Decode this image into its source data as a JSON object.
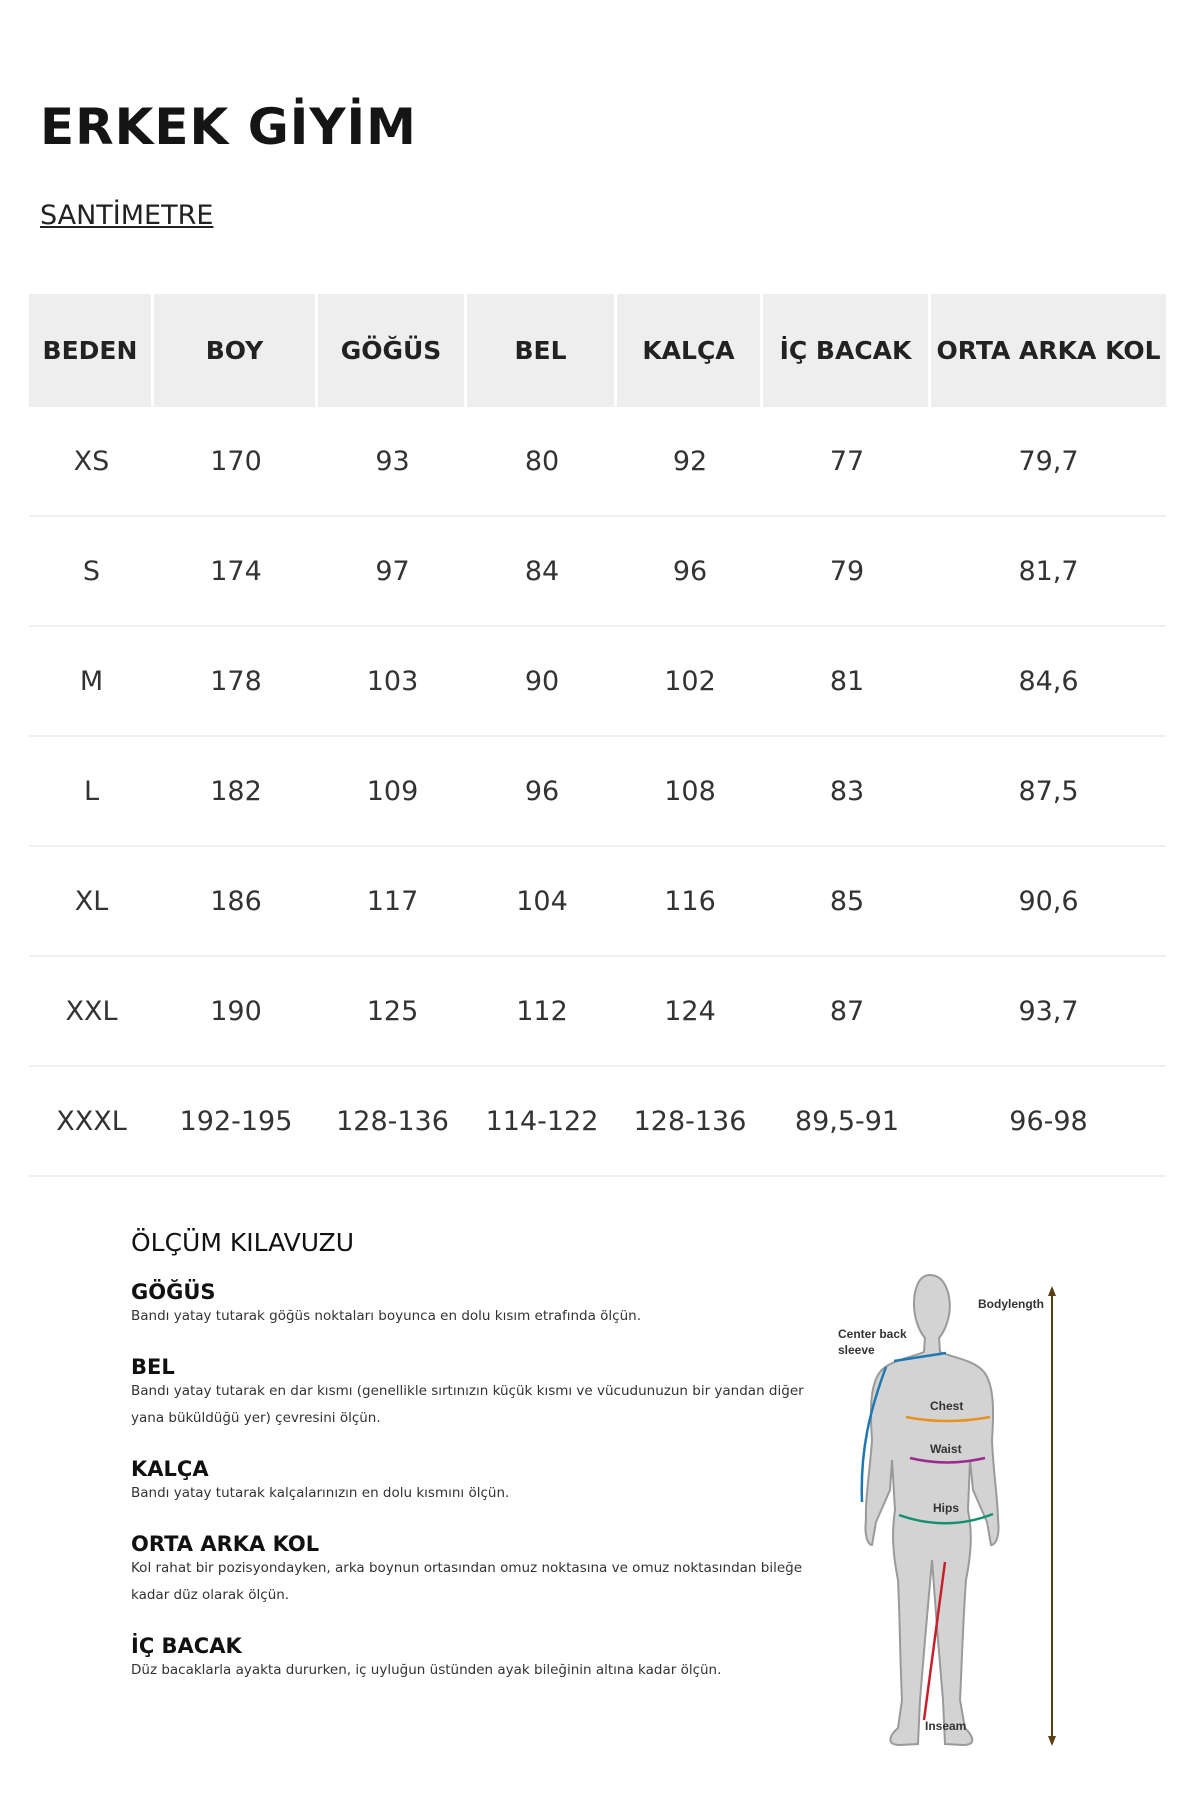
{
  "title": "ERKEK GİYİM",
  "unit": "SANTİMETRE",
  "table": {
    "headers": [
      "BEDEN",
      "BOY",
      "GÖĞÜS",
      "BEL",
      "KALÇA",
      "İÇ BACAK",
      "ORTA ARKA KOL"
    ],
    "rows": [
      [
        "XS",
        "170",
        "93",
        "80",
        "92",
        "77",
        "79,7"
      ],
      [
        "S",
        "174",
        "97",
        "84",
        "96",
        "79",
        "81,7"
      ],
      [
        "M",
        "178",
        "103",
        "90",
        "102",
        "81",
        "84,6"
      ],
      [
        "L",
        "182",
        "109",
        "96",
        "108",
        "83",
        "87,5"
      ],
      [
        "XL",
        "186",
        "117",
        "104",
        "116",
        "85",
        "90,6"
      ],
      [
        "XXL",
        "190",
        "125",
        "112",
        "124",
        "87",
        "93,7"
      ],
      [
        "XXXL",
        "192-195",
        "128-136",
        "114-122",
        "128-136",
        "89,5-91",
        "96-98"
      ]
    ]
  },
  "guide": {
    "title": "ÖLÇÜM KILAVUZU",
    "sections": [
      {
        "h": "GÖĞÜS",
        "p": "Bandı yatay tutarak göğüs noktaları boyunca en dolu kısım etrafında ölçün."
      },
      {
        "h": "BEL",
        "p": "Bandı yatay tutarak en dar kısmı (genellikle sırtınızın küçük kısmı ve vücudunuzun bir yandan diğer yana büküldüğü yer) çevresini ölçün."
      },
      {
        "h": "KALÇA",
        "p": "Bandı yatay tutarak kalçalarınızın en dolu kısmını ölçün."
      },
      {
        "h": "ORTA ARKA KOL",
        "p": "Kol rahat bir pozisyondayken, arka boynun ortasından omuz noktasına ve omuz noktasından bileğe kadar düz olarak ölçün."
      },
      {
        "h": "İÇ BACAK",
        "p": "Düz bacaklarla ayakta dururken, iç uyluğun üstünden ayak bileğinin altına kadar ölçün."
      }
    ]
  },
  "figure": {
    "labels": {
      "bodylength": "Bodylength",
      "sleeve1": "Center back",
      "sleeve2": "sleeve",
      "chest": "Chest",
      "waist": "Waist",
      "hips": "Hips",
      "inseam": "Inseam"
    },
    "colors": {
      "sleeve": "#1f78b4",
      "chest": "#e8921e",
      "waist": "#9b2b8c",
      "hips": "#139070",
      "inseam": "#c8202a",
      "bodylength": "#5a3d10"
    }
  }
}
